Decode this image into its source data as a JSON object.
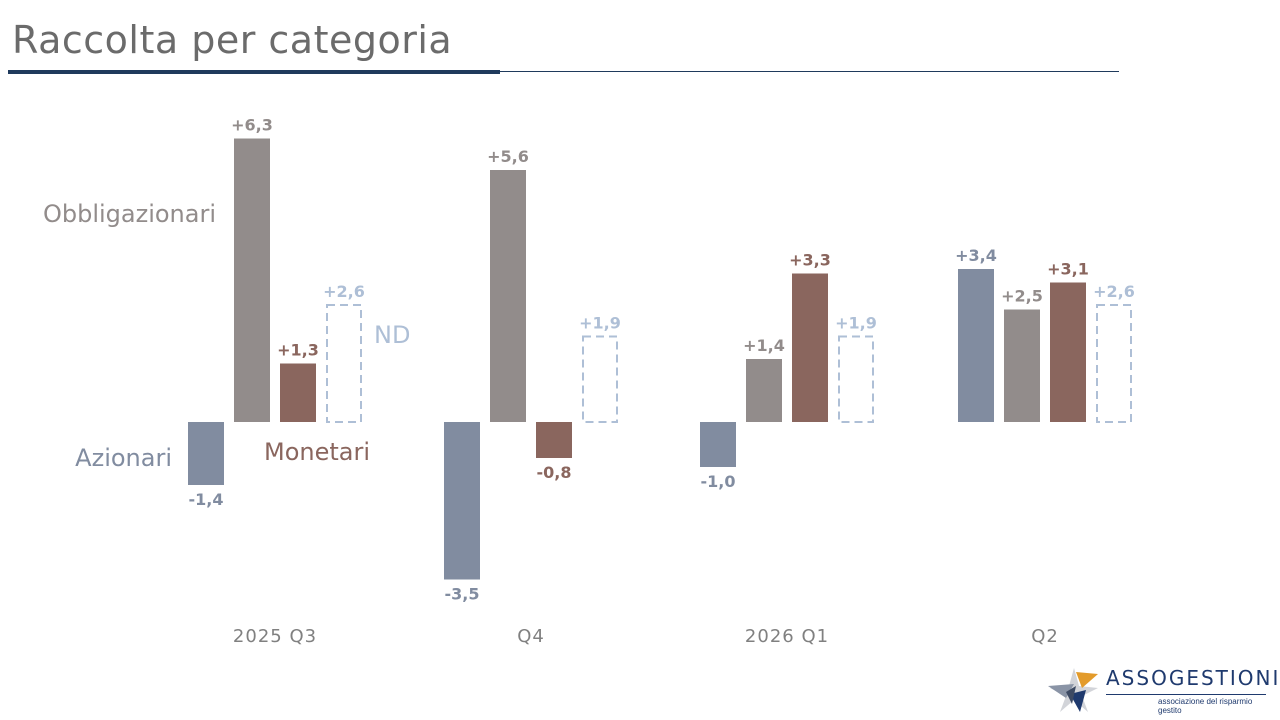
{
  "title": "Raccolta per categoria",
  "logo": {
    "name": "ASSOGESTIONI",
    "tagline": "associazione del risparmio gestito"
  },
  "chart_data": {
    "type": "bar",
    "categories": [
      "2025 Q3",
      "Q4",
      "2026 Q1",
      "Q2"
    ],
    "series": [
      {
        "name": "Azionari",
        "color": "#818ca0",
        "values": [
          -1.4,
          -3.5,
          -1.0,
          3.4
        ],
        "labels": [
          "-1,4",
          "-3,5",
          "-1,0",
          "+3,4"
        ]
      },
      {
        "name": "Obbligazionari",
        "color": "#928c8b",
        "values": [
          6.3,
          5.6,
          1.4,
          2.5
        ],
        "labels": [
          "+6,3",
          "+5,6",
          "+1,4",
          "+2,5"
        ]
      },
      {
        "name": "Monetari",
        "color": "#8a665e",
        "values": [
          1.3,
          -0.8,
          3.3,
          3.1
        ],
        "labels": [
          "+1,3",
          "-0,8",
          "+3,3",
          "+3,1"
        ]
      },
      {
        "name": "ND",
        "color": "#aebfd6",
        "style": "dashed",
        "values": [
          2.6,
          1.9,
          1.9,
          2.6
        ],
        "labels": [
          "+2,6",
          "+1,9",
          "+1,9",
          "+2,6"
        ]
      }
    ],
    "legend_placement": "inline-near-first-group",
    "grid": false
  }
}
